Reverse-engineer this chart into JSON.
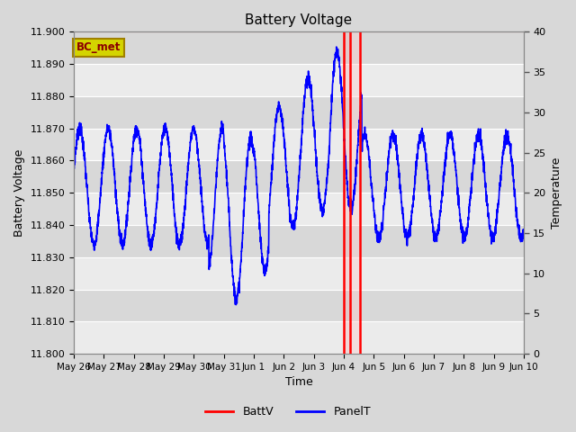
{
  "title": "Battery Voltage",
  "xlabel": "Time",
  "ylabel_left": "Battery Voltage",
  "ylabel_right": "Temperature",
  "ylim_left": [
    11.8,
    11.9
  ],
  "ylim_right": [
    0,
    40
  ],
  "yticks_left": [
    11.8,
    11.81,
    11.82,
    11.83,
    11.84,
    11.85,
    11.86,
    11.87,
    11.88,
    11.89,
    11.9
  ],
  "yticks_right": [
    0,
    5,
    10,
    15,
    20,
    25,
    30,
    35,
    40
  ],
  "bg_color": "#d8d8d8",
  "grid_color": "#c0c0c0",
  "annotation_label": "BC_met",
  "annotation_bg": "#d4d400",
  "annotation_text_color": "#8b0000",
  "annotation_edge_color": "#a08000",
  "vline_color": "red",
  "vline_x1": 9.0,
  "vline_x2": 9.2,
  "vline_x3": 9.55,
  "battv_color": "red",
  "panelt_color": "blue",
  "xtick_labels": [
    "May 26",
    "May 27",
    "May 28",
    "May 29",
    "May 30",
    "May 31",
    "Jun 1",
    "Jun 2",
    "Jun 3",
    "Jun 4",
    "Jun 5",
    "Jun 6",
    "Jun 7",
    "Jun 8",
    "Jun 9",
    "Jun 10"
  ],
  "xtick_positions": [
    0,
    1,
    2,
    3,
    4,
    5,
    6,
    7,
    8,
    9,
    10,
    11,
    12,
    13,
    14,
    15
  ]
}
